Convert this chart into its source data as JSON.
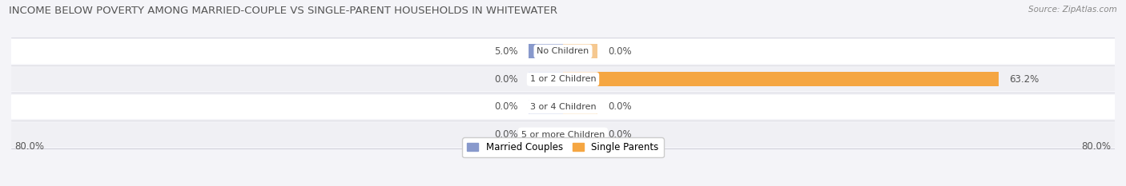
{
  "title": "INCOME BELOW POVERTY AMONG MARRIED-COUPLE VS SINGLE-PARENT HOUSEHOLDS IN WHITEWATER",
  "source": "Source: ZipAtlas.com",
  "categories": [
    "No Children",
    "1 or 2 Children",
    "3 or 4 Children",
    "5 or more Children"
  ],
  "married_values": [
    5.0,
    0.0,
    0.0,
    0.0
  ],
  "single_values": [
    0.0,
    63.2,
    0.0,
    0.0
  ],
  "married_color": "#8899cc",
  "married_stub_color": "#aab4dd",
  "single_color": "#f5a642",
  "single_stub_color": "#f5c890",
  "axis_min": -80.0,
  "axis_max": 80.0,
  "left_label": "80.0%",
  "right_label": "80.0%",
  "bar_height": 0.52,
  "row_colors": [
    "#ffffff",
    "#f0f0f4",
    "#ffffff",
    "#f0f0f4"
  ],
  "background_color": "#f4f4f8",
  "legend_married": "Married Couples",
  "legend_single": "Single Parents",
  "title_fontsize": 9.5,
  "label_fontsize": 8.5,
  "category_fontsize": 8.0,
  "stub_size": 5.0
}
